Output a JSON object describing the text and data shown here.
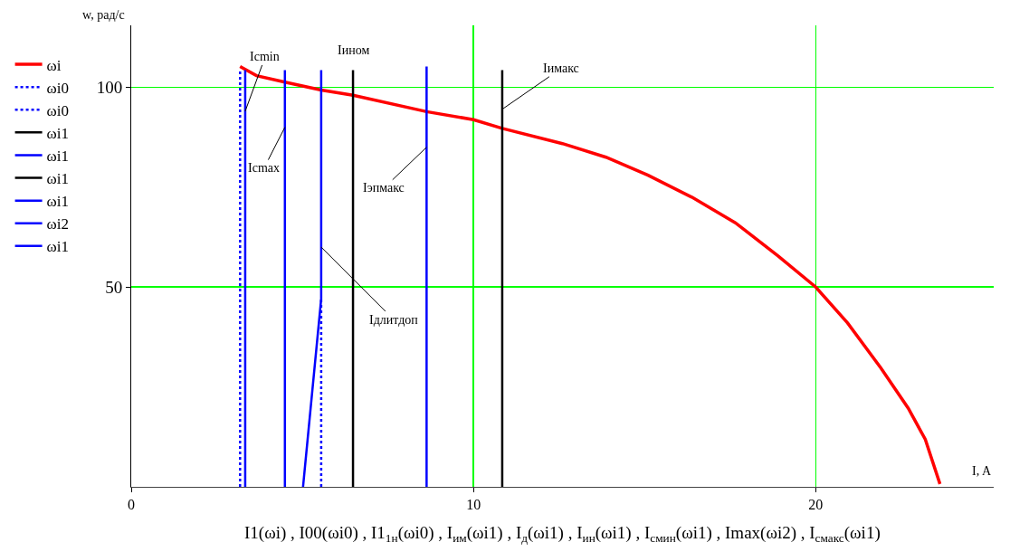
{
  "chart_data": {
    "type": "line",
    "xlabel": "I, A",
    "ylabel": "w, рад/с",
    "xlim": [
      0,
      25.2
    ],
    "ylim": [
      0,
      115.5
    ],
    "xticks": [
      0,
      10,
      20
    ],
    "yticks": [
      50,
      100
    ],
    "grid": true,
    "legend": "left",
    "series": [
      {
        "name": "ωi",
        "color": "#ff0000",
        "x": [
          3.18,
          3.66,
          4.49,
          5.55,
          6.48,
          8.63,
          10,
          10.84,
          12.6,
          13.87,
          15.1,
          16.4,
          17.65,
          18.9,
          20,
          20.93,
          21.9,
          22.7,
          23.2,
          23.63
        ],
        "values": [
          105.2,
          102.9,
          101.3,
          99.3,
          98,
          93.9,
          91.9,
          89.7,
          85.9,
          82.5,
          78,
          72.4,
          66.1,
          57.8,
          50,
          41,
          29.8,
          19.7,
          11.9,
          0.7
        ]
      },
      {
        "name": "ωi0",
        "color": "#0000ff",
        "line_style": "dotted",
        "x": [
          3.18,
          3.18
        ],
        "values": [
          0,
          104.3
        ]
      },
      {
        "name": "ωi0",
        "color": "#0000ff",
        "line_style": "dotted",
        "x": [
          5.55,
          5.55
        ],
        "values": [
          0,
          47
        ]
      },
      {
        "name": "ωi1",
        "color": "#000000",
        "x": [
          10.84,
          10.84
        ],
        "values": [
          0,
          104.3
        ]
      },
      {
        "name": "ωi1",
        "color": "#0000ff",
        "x": [
          5.02,
          5.55,
          5.55
        ],
        "values": [
          0,
          47,
          104.3
        ]
      },
      {
        "name": "ωi1",
        "color": "#000000",
        "x": [
          6.48,
          6.48
        ],
        "values": [
          0,
          104.3
        ]
      },
      {
        "name": "ωi1",
        "color": "#0000ff",
        "x": [
          3.33,
          3.33
        ],
        "values": [
          0,
          104.3
        ]
      },
      {
        "name": "ωi2",
        "color": "#0000ff",
        "x": [
          8.63,
          8.63
        ],
        "values": [
          0,
          105.2
        ]
      },
      {
        "name": "ωi1",
        "color": "#0000ff",
        "x": [
          4.49,
          4.49
        ],
        "values": [
          0,
          104.3
        ]
      }
    ],
    "annotations": [
      {
        "text": "Icmin",
        "x": 3.33,
        "y": 94
      },
      {
        "text": "Iином",
        "x": 6.48,
        "y": 104.3
      },
      {
        "text": "Iимакс",
        "x": 10.84,
        "y": 94.5
      },
      {
        "text": "Icmax",
        "x": 4.49,
        "y": 90
      },
      {
        "text": "Iэпмакс",
        "x": 8.63,
        "y": 85
      },
      {
        "text": "Iдлитдоп",
        "x": 5.55,
        "y": 60
      },
      "I1(ωi) , I00(ωi0) , I1$_{1н}$(ωi0) , I$_{им}$(ωi1) , I$_{д}$(ωi1) , I$_{ин}$(ωi1) , I$_{смин}$(ωi1) , Imax(ωi2) , I$_{смакс}$(ωi1)"
    ]
  }
}
